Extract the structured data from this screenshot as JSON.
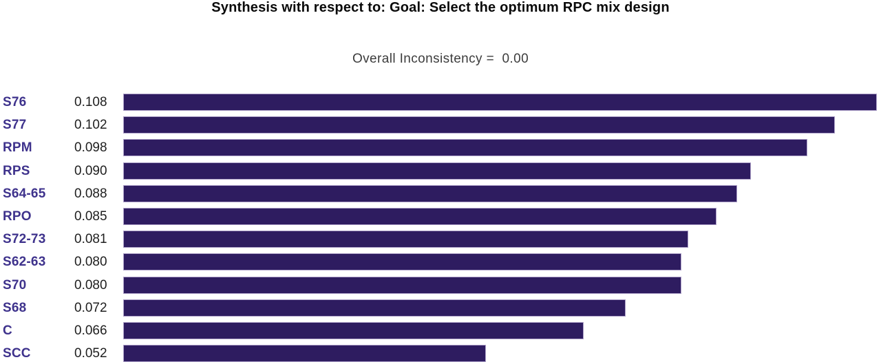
{
  "title": "Synthesis with respect to: Goal: Select the optimum RPC mix design",
  "subtitle": "Overall Inconsistency =  0.00",
  "colors": {
    "bar_fill": "#2E1C60",
    "bar_edge": "#C3B7DB",
    "category_label": "#3E328C",
    "value_text": "#1E1E1E",
    "title_text": "#0A0A0A",
    "subtitle_text": "#3C3C3C",
    "background": "#FFFFFF"
  },
  "chart_data": {
    "type": "bar",
    "orientation": "horizontal",
    "title": "Synthesis with respect to: Goal: Select the optimum RPC mix design",
    "annotation": "Overall Inconsistency = 0.00",
    "categories": [
      "S76",
      "S77",
      "RPM",
      "RPS",
      "S64-65",
      "RPO",
      "S72-73",
      "S62-63",
      "S70",
      "S68",
      "C",
      "SCC"
    ],
    "values": [
      0.108,
      0.102,
      0.098,
      0.09,
      0.088,
      0.085,
      0.081,
      0.08,
      0.08,
      0.072,
      0.066,
      0.052
    ],
    "value_labels": [
      "0.108",
      "0.102",
      "0.098",
      "0.090",
      "0.088",
      "0.085",
      "0.081",
      "0.080",
      "0.080",
      "0.072",
      "0.066",
      "0.052"
    ],
    "xlim": [
      0,
      0.108
    ],
    "grid": false,
    "legend": false,
    "sorted": "descending"
  }
}
